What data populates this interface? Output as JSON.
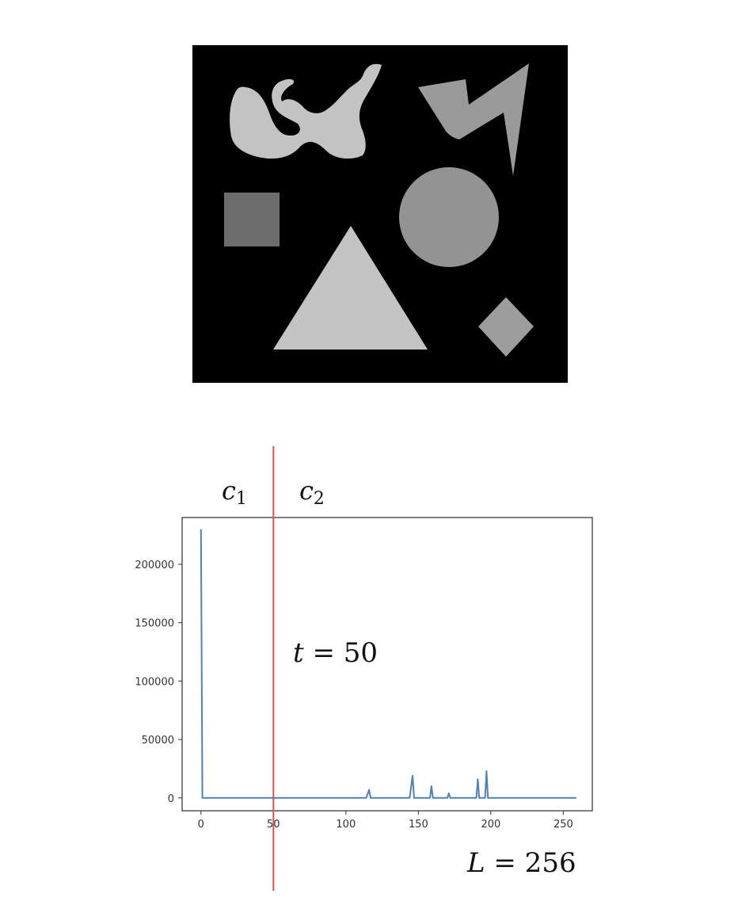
{
  "image_panel": {
    "background_color": "#000000",
    "shapes": [
      {
        "name": "blob",
        "color": "#c3c3c3"
      },
      {
        "name": "lightning",
        "color": "#9a9a9a"
      },
      {
        "name": "square",
        "color": "#6d6d6d"
      },
      {
        "name": "circle",
        "color": "#939393"
      },
      {
        "name": "triangle",
        "color": "#c4c4c4"
      },
      {
        "name": "diamond",
        "color": "#9d9d9d"
      }
    ]
  },
  "annotations": {
    "c1": {
      "base": "c",
      "sub": "1"
    },
    "c2": {
      "base": "c",
      "sub": "2"
    },
    "threshold": {
      "var": "t",
      "rest": " = 50",
      "value": 50,
      "color": "#d9534f"
    },
    "levels": {
      "var": "L",
      "rest": " = 256"
    }
  },
  "chart_data": {
    "type": "line",
    "x_ticks": [
      "0",
      "50",
      "100",
      "150",
      "200",
      "250"
    ],
    "y_ticks": [
      "0",
      "50000",
      "100000",
      "150000",
      "200000"
    ],
    "xlim": [
      -13,
      270
    ],
    "ylim": [
      -11000,
      240000
    ],
    "line_color": "#4f81b9",
    "series": [
      {
        "points": [
          [
            0,
            230000
          ],
          [
            1,
            0
          ],
          [
            114,
            0
          ],
          [
            116,
            7000
          ],
          [
            117,
            0
          ],
          [
            144,
            0
          ],
          [
            146,
            19000
          ],
          [
            147,
            0
          ],
          [
            158,
            0
          ],
          [
            159,
            10000
          ],
          [
            160,
            0
          ],
          [
            170,
            0
          ],
          [
            171,
            4000
          ],
          [
            172,
            0
          ],
          [
            190,
            0
          ],
          [
            191,
            16000
          ],
          [
            192,
            0
          ],
          [
            196,
            0
          ],
          [
            197,
            23000
          ],
          [
            198,
            0
          ],
          [
            259,
            0
          ]
        ]
      }
    ]
  }
}
